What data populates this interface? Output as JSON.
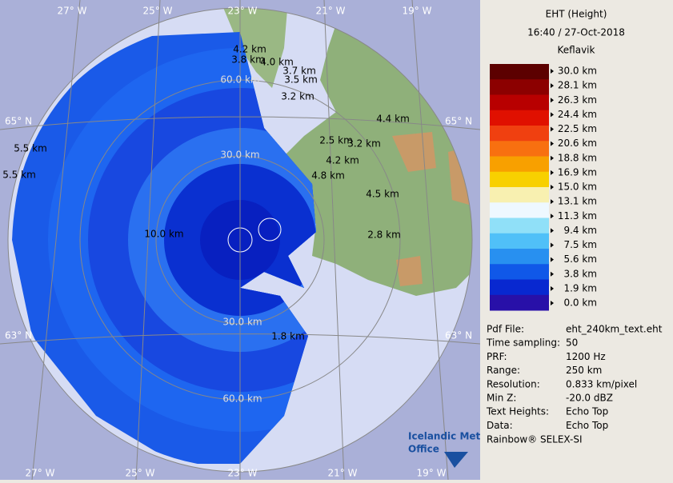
{
  "map": {
    "longitude_labels": {
      "top": [
        "27° W",
        "25° W",
        "23° W",
        "21° W",
        "19° W"
      ],
      "bottom": [
        "27° W",
        "25° W",
        "23° W",
        "21° W",
        "19° W"
      ]
    },
    "latitude_labels": {
      "left": [
        "65° N",
        "63° N"
      ],
      "right": [
        "65° N",
        "63° N"
      ]
    },
    "range_labels": [
      "60.0 km",
      "30.0 km",
      "30.0 km",
      "60.0 km"
    ],
    "echo_top_labels": [
      "4.2 km",
      "3.8 km",
      "4.0 km",
      "3.7 km",
      "3.5 km",
      "3.2 km",
      "4.4 km",
      "2.5 km",
      "3.2 km",
      "4.2 km",
      "4.8 km",
      "4.5 km",
      "2.8 km",
      "5.5 km",
      "5.5 km",
      "10.0 km",
      "1.8 km"
    ]
  },
  "legend": {
    "title": "EHT (Height)",
    "time": "16:40 / 27-Oct-2018",
    "site": "Keflavik",
    "scale": {
      "labels": [
        "30.0 km",
        "28.1 km",
        "26.3 km",
        "24.4 km",
        "22.5 km",
        "20.6 km",
        "18.8 km",
        "16.9 km",
        "15.0 km",
        "13.1 km",
        "11.3 km",
        "9.4 km",
        "7.5 km",
        "5.6 km",
        "3.8 km",
        "1.9 km",
        "0.0 km"
      ],
      "colors": [
        "#5c0000",
        "#8c0000",
        "#b80000",
        "#e01000",
        "#f04010",
        "#f87010",
        "#f8a000",
        "#f8d000",
        "#f8f0b0",
        "#eef8ff",
        "#90e0f8",
        "#50c0f8",
        "#2890f0",
        "#1058e8",
        "#0828d0",
        "#2810a8"
      ]
    }
  },
  "info": {
    "rows": [
      [
        "Pdf File:",
        "eht_240km_text.eht"
      ],
      [
        "Time sampling:",
        "50"
      ],
      [
        "PRF:",
        "1200 Hz"
      ],
      [
        "Range:",
        "250 km"
      ],
      [
        "Resolution:",
        "0.833 km/pixel"
      ],
      [
        "Min Z:",
        "-20.0 dBZ"
      ],
      [
        "Text Heights:",
        "Echo Top"
      ],
      [
        "Data:",
        "Echo Top"
      ]
    ]
  },
  "credit": "Rainbow® SELEX-SI",
  "logo": [
    "Icelandic Met",
    "Office"
  ]
}
